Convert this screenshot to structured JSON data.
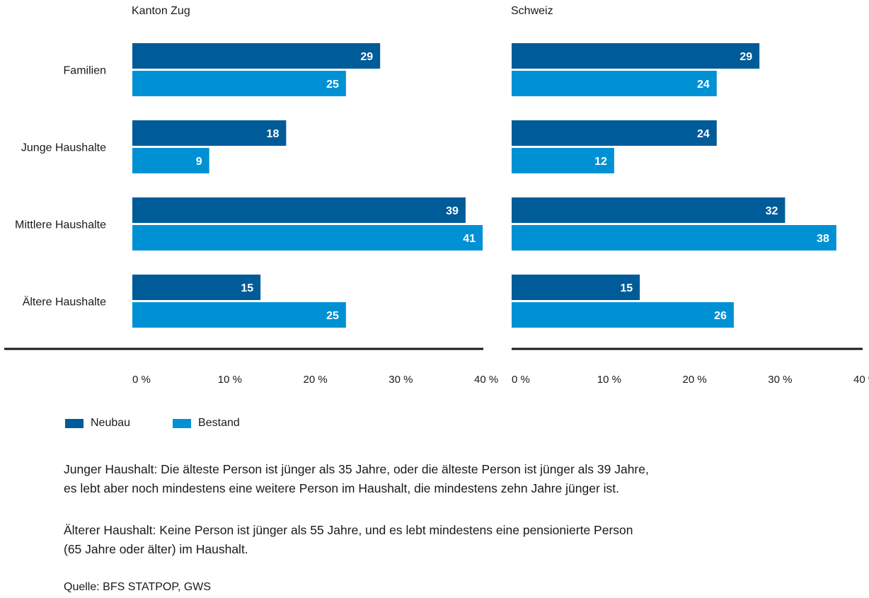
{
  "chart_data": {
    "type": "bar",
    "orientation": "horizontal",
    "categories": [
      "Familien",
      "Junge Haushalte",
      "Mittlere Haushalte",
      "Ältere Haushalte"
    ],
    "panels": [
      {
        "title": "Kanton Zug",
        "series": [
          {
            "name": "Neubau",
            "values": [
              29,
              18,
              39,
              15
            ]
          },
          {
            "name": "Bestand",
            "values": [
              25,
              9,
              41,
              25
            ]
          }
        ]
      },
      {
        "title": "Schweiz",
        "series": [
          {
            "name": "Neubau",
            "values": [
              29,
              24,
              32,
              15
            ]
          },
          {
            "name": "Bestand",
            "values": [
              24,
              12,
              38,
              26
            ]
          }
        ]
      }
    ],
    "xlim": [
      0,
      40
    ],
    "xticks": [
      0,
      10,
      20,
      30,
      40
    ],
    "xtick_labels": [
      "0 %",
      "10 %",
      "20 %",
      "30 %",
      "40 %"
    ],
    "colors": {
      "Neubau": "#005b99",
      "Bestand": "#0091d5"
    },
    "legend_position": "bottom-left"
  },
  "legend": {
    "neubau": "Neubau",
    "bestand": "Bestand"
  },
  "notes": {
    "note1_line1": "Junger Haushalt: Die älteste Person ist jünger als 35 Jahre, oder die älteste Person ist jünger als 39 Jahre,",
    "note1_line2": "es lebt aber noch mindestens eine weitere Person im Haushalt, die mindestens zehn Jahre jünger ist.",
    "note2_line1": "Älterer Haushalt: Keine Person ist jünger als 55 Jahre, und es lebt mindestens eine pensionierte Person",
    "note2_line2": "(65 Jahre oder älter) im Haushalt."
  },
  "source": "Quelle: BFS STATPOP, GWS"
}
